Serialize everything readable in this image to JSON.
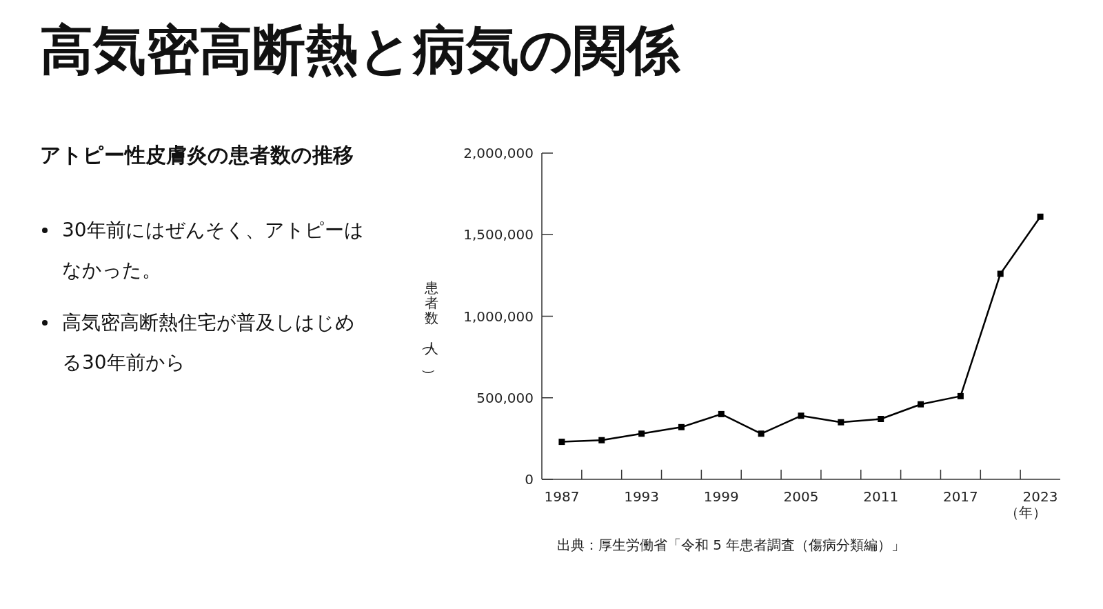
{
  "chart_data": {
    "type": "line",
    "title": "高気密高断熱と病気の関係",
    "subtitle": "アトピー性皮膚炎の患者数の推移",
    "annotations": [
      "30年前にはぜんそく、アトピーはなかった。",
      "高気密高断熱住宅が普及しはじめる30年前から",
      "出典：厚生労働省「令和 5 年患者調査（傷病分類編）」"
    ],
    "xlabel": "（年）",
    "ylabel": "患者数（人）",
    "x": [
      1987,
      1990,
      1993,
      1996,
      1999,
      2002,
      2005,
      2008,
      2011,
      2014,
      2017,
      2020,
      2023
    ],
    "series": [
      {
        "color": "#000000",
        "values": [
          230000,
          240000,
          280000,
          320000,
          400000,
          280000,
          390000,
          350000,
          370000,
          460000,
          510000,
          1260000,
          1610000
        ]
      }
    ],
    "xlim": [
      1985.5,
      2024.5
    ],
    "ylim": [
      0,
      2000000
    ],
    "xticks": [
      1987,
      1993,
      1999,
      2005,
      2011,
      2017,
      2023,
      {
        "value": 1988.5,
        "label": null
      },
      {
        "value": 1991.5,
        "label": null
      },
      {
        "value": 1994.5,
        "label": null
      },
      {
        "value": 1997.5,
        "label": null
      },
      {
        "value": 2000.5,
        "label": null
      },
      {
        "value": 2003.5,
        "label": null
      },
      {
        "value": 2006.5,
        "label": null
      },
      {
        "value": 2009.5,
        "label": null
      },
      {
        "value": 2012.5,
        "label": null
      },
      {
        "value": 2015.5,
        "label": null
      },
      {
        "value": 2018.5,
        "label": null
      },
      {
        "value": 2021.5,
        "label": null
      }
    ],
    "yticks": [
      0,
      {
        "value": 500000,
        "label": "500,000"
      },
      {
        "value": 1000000,
        "label": "1,000,000"
      },
      {
        "value": 1500000,
        "label": "1,500,000"
      },
      {
        "value": 2000000,
        "label": "2,000,000"
      }
    ],
    "marker": "square",
    "line_style": "solid"
  }
}
